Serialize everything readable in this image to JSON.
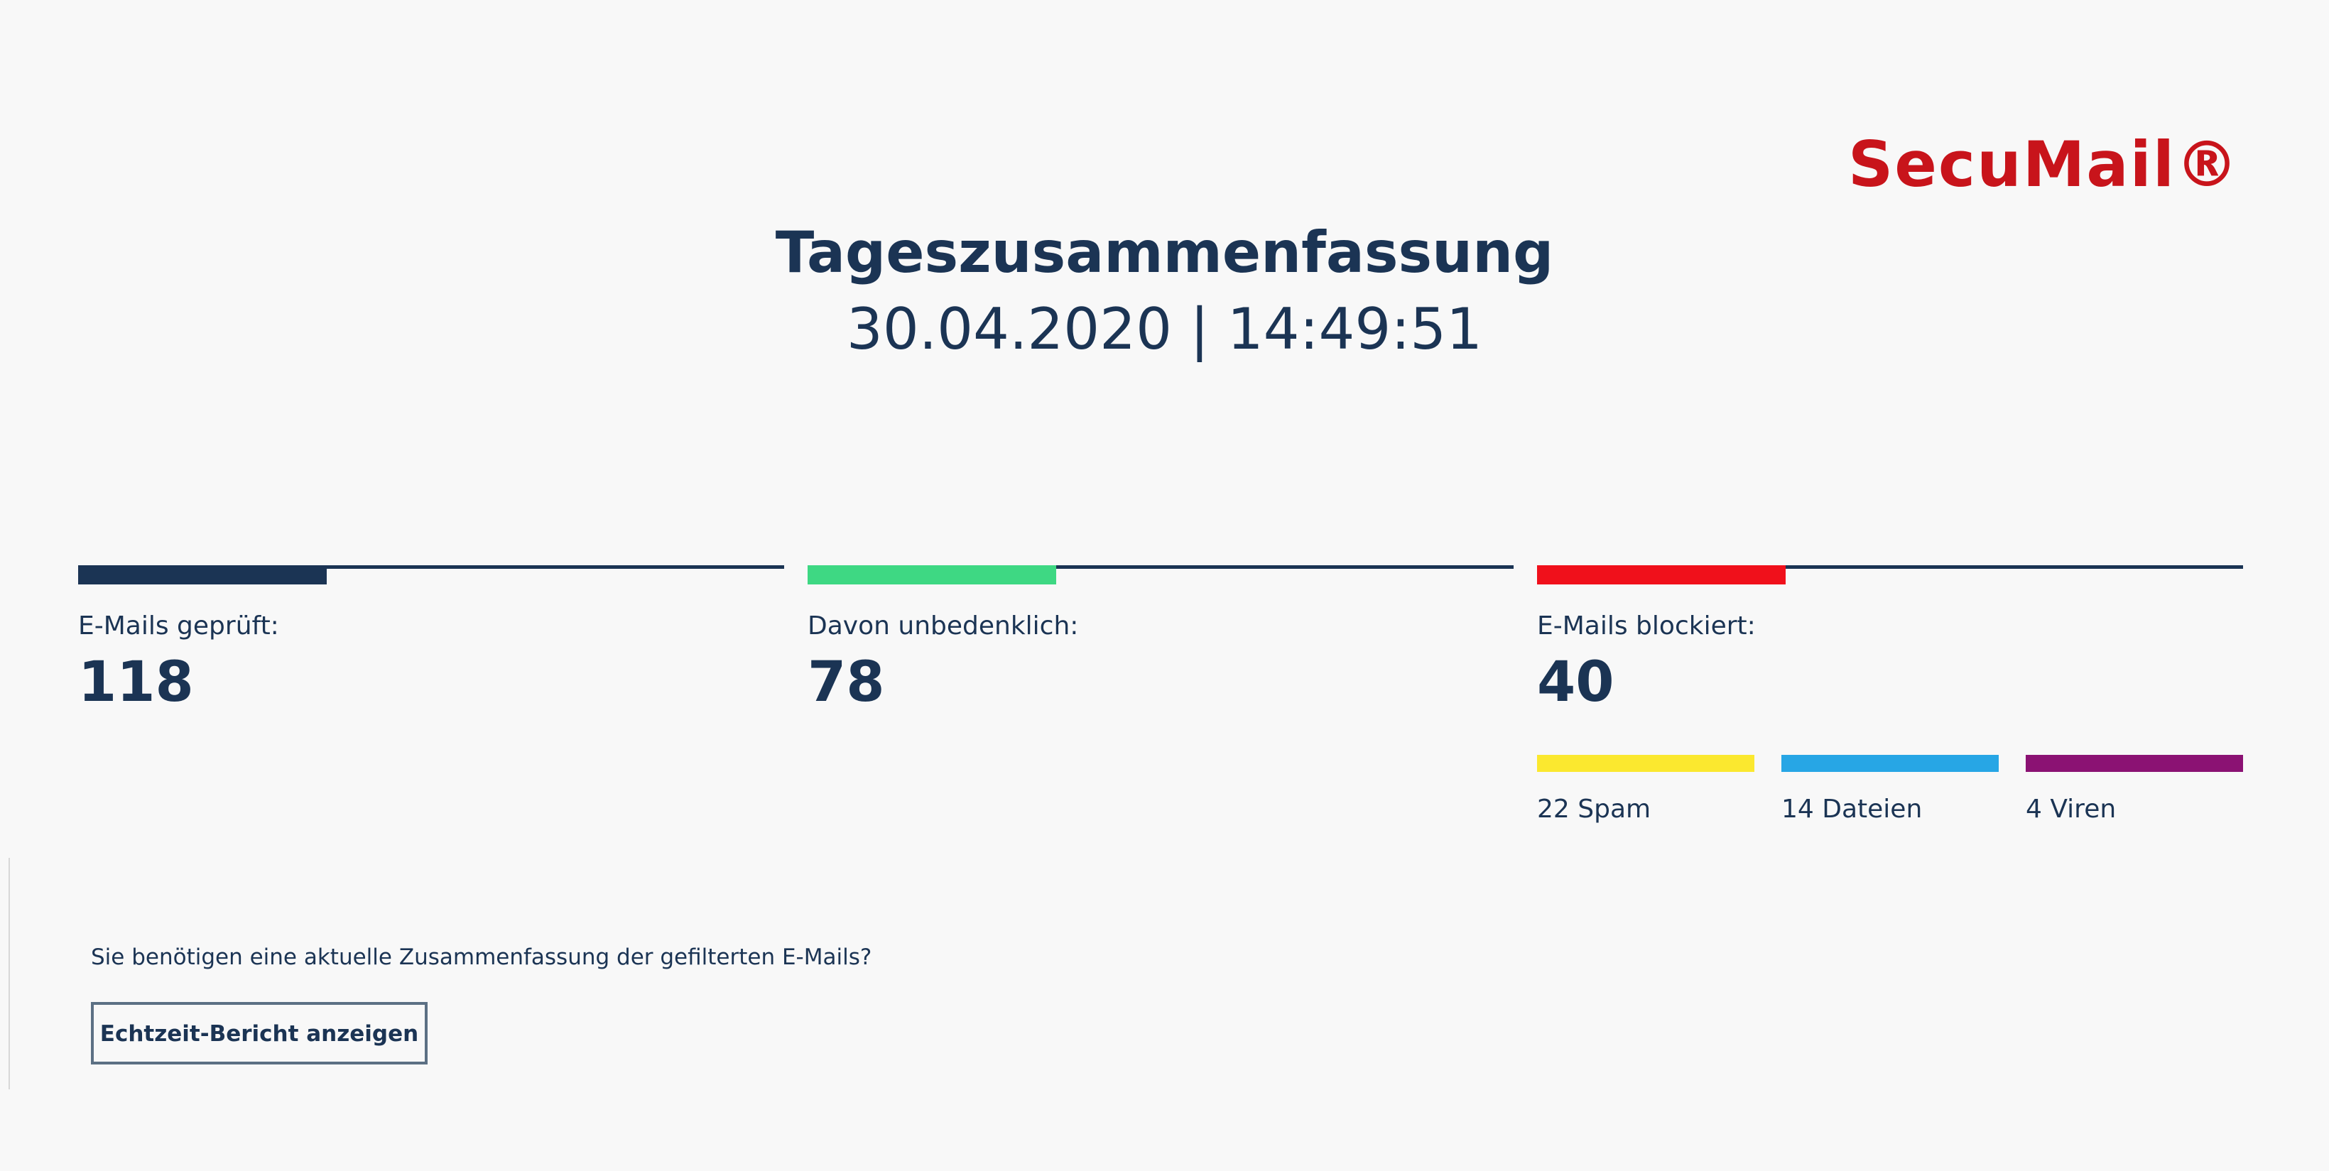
{
  "brand": {
    "logo_text": "SecuMail®",
    "color": "#c8141b"
  },
  "header": {
    "title": "Tageszusammenfassung",
    "datetime": "30.04.2020 | 14:49:51"
  },
  "stats": [
    {
      "label": "E-Mails geprüft:",
      "value": "118",
      "accent_color": "#1b3454"
    },
    {
      "label": "Davon unbedenklich:",
      "value": "78",
      "accent_color": "#3ed883"
    },
    {
      "label": "E-Mails blockiert:",
      "value": "40",
      "accent_color": "#f0101b"
    }
  ],
  "blocked_breakdown": [
    {
      "label": "22 Spam",
      "color": "#fbe82f"
    },
    {
      "label": "14 Dateien",
      "color": "#27a6e5"
    },
    {
      "label": "4 Viren",
      "color": "#8b1273"
    }
  ],
  "cta": {
    "question": "Sie benötigen eine aktuelle Zusammenfassung der gefilterten E-Mails?",
    "button_label": "Echtzeit-Bericht anzeigen"
  },
  "colors": {
    "background": "#f8f8f8",
    "text": "#1b3454",
    "track_line": "#1b3454"
  }
}
